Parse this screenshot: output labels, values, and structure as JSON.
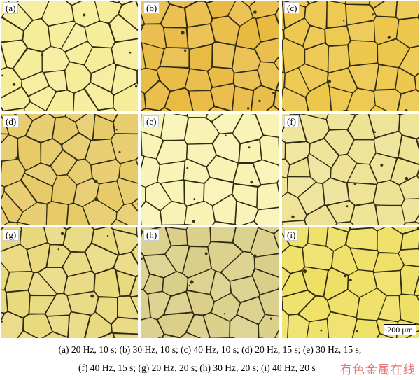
{
  "figure": {
    "panels": [
      {
        "label": "(a)",
        "color": "#f6ec95"
      },
      {
        "label": "(b)",
        "color": "#e8b83a"
      },
      {
        "label": "(c)",
        "color": "#ecc440"
      },
      {
        "label": "(d)",
        "color": "#e6c860"
      },
      {
        "label": "(e)",
        "color": "#f8f3b0"
      },
      {
        "label": "(f)",
        "color": "#eee190"
      },
      {
        "label": "(g)",
        "color": "#e8d878"
      },
      {
        "label": "(h)",
        "color": "#d9cd84"
      },
      {
        "label": "(i)",
        "color": "#eedf5e"
      }
    ],
    "scale_bar": "200 μm",
    "caption_line1": "(a) 20 Hz, 10 s; (b) 30 Hz,   10 s; (c) 40 Hz, 10 s; (d) 20 Hz, 15 s; (e) 30 Hz, 15 s;",
    "caption_line2": "(f) 40 Hz, 15 s; (g) 20 Hz, 20 s; (h) 30 Hz, 20 s; (i) 40 Hz, 20 s",
    "watermark": "有色金属在线"
  }
}
